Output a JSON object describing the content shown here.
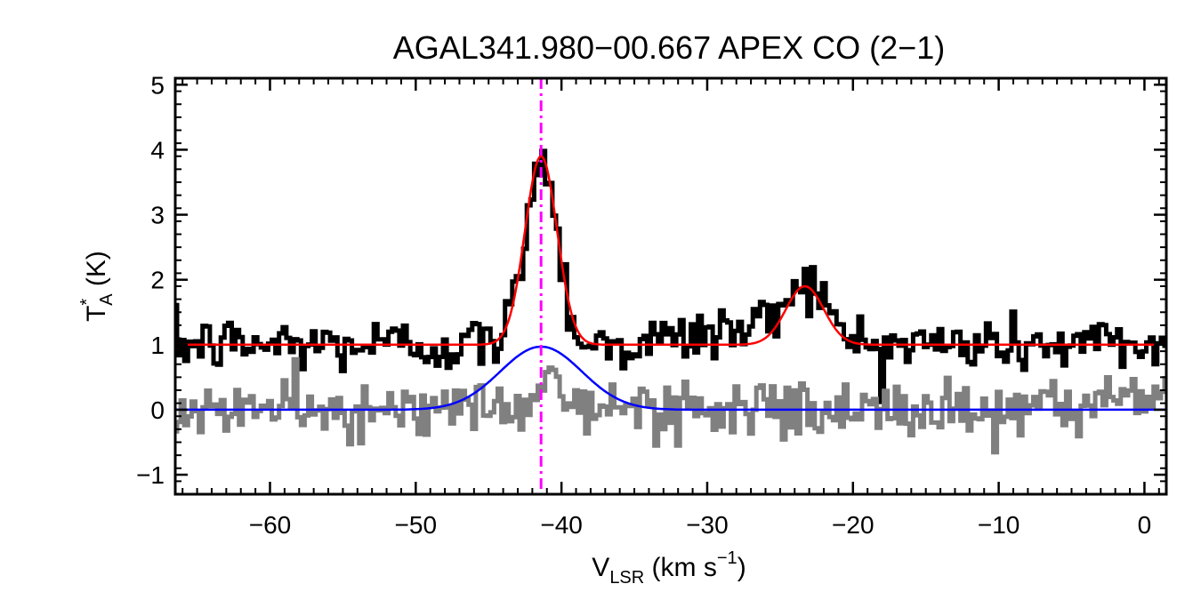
{
  "chart_data": {
    "type": "line",
    "title": "AGAL341.980−00.667  APEX CO (2−1)",
    "xlabel": {
      "main": "V",
      "sub": "LSR",
      "unit_open": " (km s",
      "unit_exp": "−1",
      "unit_close": ")"
    },
    "ylabel": {
      "main": "T",
      "sup": "*",
      "sub": "A",
      "unit": " (K)"
    },
    "xlim": [
      -66.5,
      1.5
    ],
    "ylim": [
      -1.3,
      5.1
    ],
    "x_ticks": [
      -60,
      -50,
      -40,
      -30,
      -20,
      -10,
      0
    ],
    "x_tick_labels": [
      "−60",
      "−50",
      "−40",
      "−30",
      "−20",
      "−10",
      "0"
    ],
    "y_ticks": [
      -1,
      0,
      1,
      2,
      3,
      4,
      5
    ],
    "y_tick_labels": [
      "−1",
      "0",
      "1",
      "2",
      "3",
      "4",
      "5"
    ],
    "vertical_line": {
      "x": -41.4,
      "style": "dash-dot",
      "color": "#ff00ff"
    },
    "noise_level": 0.22,
    "series": [
      {
        "name": "CO (2-1) spectrum",
        "kind": "step",
        "color": "#000000",
        "baseline": 1.0,
        "components": [
          {
            "amp": 2.9,
            "center": -41.4,
            "sigma": 1.1
          },
          {
            "amp": 0.9,
            "center": -23.3,
            "sigma": 1.3
          },
          {
            "amp": 0.25,
            "center": -27.0,
            "sigma": 3.5
          }
        ]
      },
      {
        "name": "Residual / second spectrum",
        "kind": "step",
        "color": "#808080",
        "baseline": 0.0,
        "components": [
          {
            "amp": 0.55,
            "center": -41.0,
            "sigma": 0.9
          }
        ]
      },
      {
        "name": "Gaussian fit (red)",
        "kind": "line",
        "color": "#ff0000",
        "baseline": 1.0,
        "components": [
          {
            "amp": 2.9,
            "center": -41.4,
            "sigma": 1.1
          },
          {
            "amp": 0.9,
            "center": -23.3,
            "sigma": 1.3
          }
        ]
      },
      {
        "name": "Gaussian fit (blue)",
        "kind": "line",
        "color": "#0000ff",
        "baseline": 0.0,
        "components": [
          {
            "amp": 0.97,
            "center": -41.4,
            "sigma": 2.8
          }
        ]
      }
    ]
  }
}
